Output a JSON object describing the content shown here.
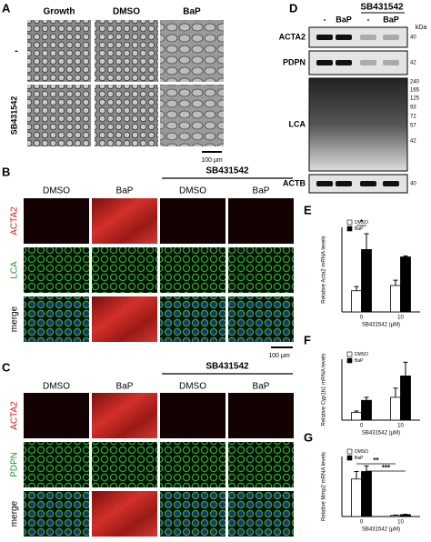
{
  "panels": {
    "A": {
      "label": "A",
      "columns": [
        "Growth",
        "DMSO",
        "BaP"
      ],
      "rows": [
        "-",
        "SB431542"
      ],
      "scale_bar": "100 μm"
    },
    "B": {
      "label": "B",
      "group": "SB431542",
      "columns": [
        "DMSO",
        "BaP",
        "DMSO",
        "BaP"
      ],
      "rows": [
        "ACTA2",
        "LCA",
        "merge"
      ],
      "scale_bar": "100 μm"
    },
    "C": {
      "label": "C",
      "group": "SB431542",
      "columns": [
        "DMSO",
        "BaP",
        "DMSO",
        "BaP"
      ],
      "rows": [
        "ACTA2",
        "PDPN",
        "merge"
      ]
    },
    "D": {
      "label": "D",
      "group": "SB431542",
      "lanes": [
        "-",
        "BaP",
        "-",
        "BaP"
      ],
      "unit": "kDa",
      "blots": [
        "ACTA2",
        "PDPN",
        "LCA",
        "ACTB"
      ],
      "markers": [
        "40",
        "42",
        "240",
        "165",
        "125",
        "93",
        "72",
        "57",
        "42",
        "40"
      ]
    }
  },
  "chart_data": [
    {
      "type": "bar",
      "panel": "E",
      "ylabel": "Relative Acta2 mRNA levels",
      "xlabel": "SB431542 (μM)",
      "categories": [
        "0",
        "10"
      ],
      "ylim": [
        0,
        4
      ],
      "series": [
        {
          "name": "DMSO",
          "color": "#ffffff",
          "values": [
            1.0,
            1.25
          ],
          "errors": [
            0.2,
            0.25
          ]
        },
        {
          "name": "BaP",
          "color": "#000000",
          "values": [
            2.95,
            2.6
          ],
          "errors": [
            0.75,
            0.05
          ]
        }
      ],
      "annotations": [
        "*"
      ]
    },
    {
      "type": "bar",
      "panel": "F",
      "ylabel": "Relative Cyp1b1 mRNA levels",
      "xlabel": "SB431542 (μM)",
      "categories": [
        "0",
        "10"
      ],
      "ylim": [
        0,
        4
      ],
      "series": [
        {
          "name": "DMSO",
          "color": "#ffffff",
          "values": [
            0.5,
            1.5
          ],
          "errors": [
            0.1,
            0.6
          ]
        },
        {
          "name": "BaP",
          "color": "#000000",
          "values": [
            1.3,
            2.9
          ],
          "errors": [
            0.2,
            0.9
          ]
        }
      ],
      "annotations": []
    },
    {
      "type": "bar",
      "panel": "G",
      "ylabel": "Relative Mmp2 mRNA levels",
      "xlabel": "SB431542 (μM)",
      "categories": [
        "0",
        "10"
      ],
      "ylim": [
        0,
        1.6
      ],
      "series": [
        {
          "name": "DMSO",
          "color": "#ffffff",
          "values": [
            1.0,
            0.03
          ],
          "errors": [
            0.2,
            0.01
          ]
        },
        {
          "name": "BaP",
          "color": "#000000",
          "values": [
            1.2,
            0.05
          ],
          "errors": [
            0.15,
            0.01
          ]
        }
      ],
      "annotations": [
        "**",
        "***"
      ]
    }
  ]
}
